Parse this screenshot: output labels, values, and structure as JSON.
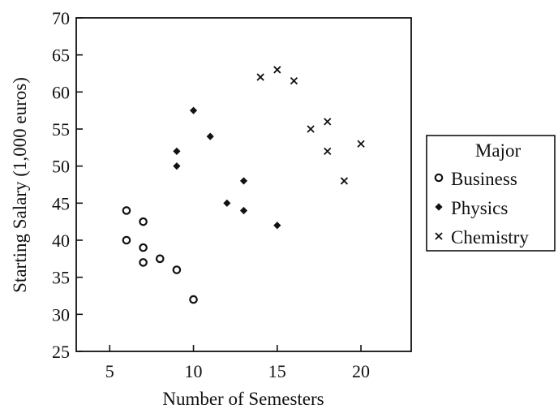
{
  "chart_data": {
    "type": "scatter",
    "title": "",
    "xlabel": "Number of Semesters",
    "ylabel": "Starting Salary (1,000 euros)",
    "xlim": [
      3,
      23
    ],
    "ylim": [
      25,
      70
    ],
    "x_ticks": [
      5,
      10,
      15,
      20
    ],
    "y_ticks": [
      25,
      30,
      35,
      40,
      45,
      50,
      55,
      60,
      65,
      70
    ],
    "grid": false,
    "legend": {
      "title": "Major",
      "position": "right"
    },
    "series": [
      {
        "name": "Business",
        "marker": "open-circle",
        "color": "#111111",
        "points": [
          [
            6,
            44
          ],
          [
            6,
            40
          ],
          [
            7,
            42.5
          ],
          [
            7,
            39
          ],
          [
            7,
            37
          ],
          [
            8,
            37.5
          ],
          [
            9,
            36
          ],
          [
            10,
            32
          ]
        ]
      },
      {
        "name": "Physics",
        "marker": "filled-diamond",
        "color": "#111111",
        "points": [
          [
            9,
            52
          ],
          [
            9,
            50
          ],
          [
            10,
            57.5
          ],
          [
            11,
            54
          ],
          [
            12,
            45
          ],
          [
            13,
            48
          ],
          [
            13,
            44
          ],
          [
            15,
            42
          ]
        ]
      },
      {
        "name": "Chemistry",
        "marker": "x",
        "color": "#111111",
        "points": [
          [
            14,
            62
          ],
          [
            15,
            63
          ],
          [
            16,
            61.5
          ],
          [
            17,
            55
          ],
          [
            18,
            56
          ],
          [
            18,
            52
          ],
          [
            19,
            48
          ],
          [
            20,
            53
          ]
        ]
      }
    ]
  }
}
